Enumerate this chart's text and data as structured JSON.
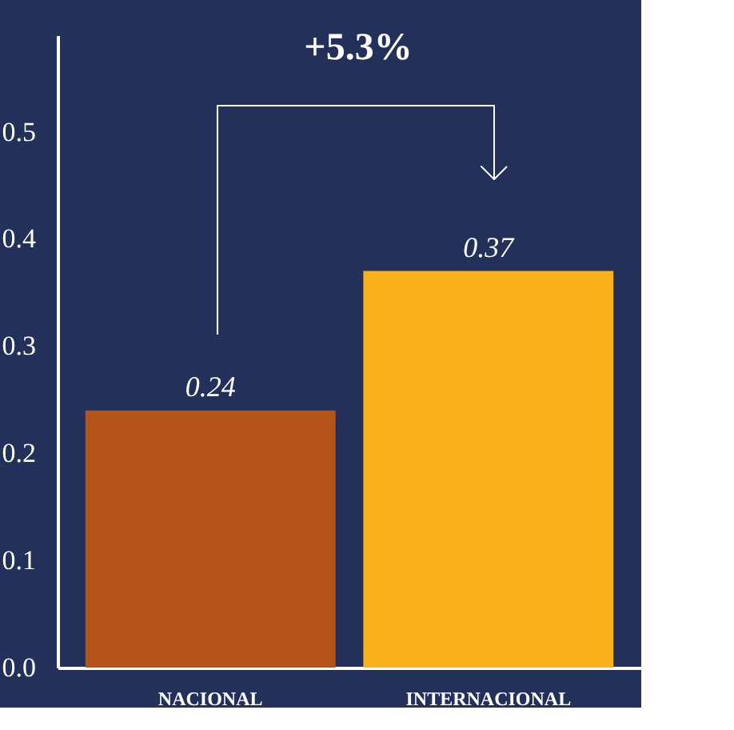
{
  "chart_data": {
    "type": "bar",
    "categories": [
      "NACIONAL",
      "INTERNACIONAL"
    ],
    "values": [
      0.24,
      0.37
    ],
    "colors": [
      "#b5541a",
      "#f9b11a"
    ],
    "ylim": [
      0,
      0.59
    ],
    "yticks": [
      {
        "value": 0,
        "label": "0.0"
      },
      0.1,
      0.2,
      0.3,
      0.4,
      0.5
    ],
    "data_labels": true,
    "grid": false,
    "annotations": [
      "+5.3%"
    ]
  }
}
